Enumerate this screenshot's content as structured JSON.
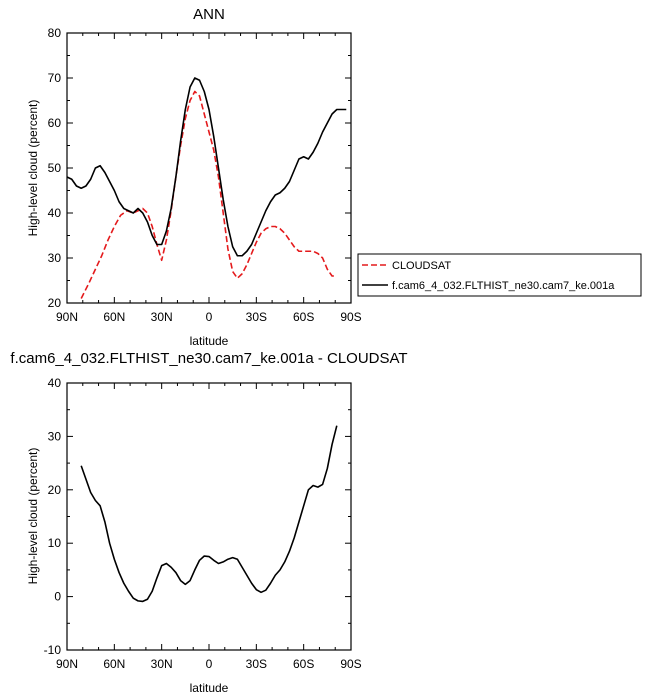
{
  "chart_data": [
    {
      "type": "line",
      "title": "ANN",
      "xlabel": "latitude",
      "ylabel": "High-level cloud (percent)",
      "x_ticks": [
        {
          "value": 90,
          "label": "90N"
        },
        {
          "value": 60,
          "label": "60N"
        },
        {
          "value": 30,
          "label": "30N"
        },
        {
          "value": 0,
          "label": "0"
        },
        {
          "value": -30,
          "label": "30S"
        },
        {
          "value": -60,
          "label": "60S"
        },
        {
          "value": -90,
          "label": "90S"
        }
      ],
      "xlim": [
        90,
        -90
      ],
      "ylim": [
        20,
        80
      ],
      "y_ticks": [
        20,
        30,
        40,
        50,
        60,
        70,
        80
      ],
      "legend": "outside-right",
      "series": [
        {
          "name": "CLOUDSAT",
          "color": "#e41a1c",
          "dash": "dashed",
          "x": [
            81,
            76,
            72,
            68,
            64,
            60,
            56,
            52,
            48,
            45,
            42,
            39,
            36,
            33,
            30,
            27,
            24,
            21,
            18,
            15,
            12,
            9,
            6,
            3,
            0,
            -3,
            -6,
            -9,
            -12,
            -15,
            -18,
            -21,
            -24,
            -27,
            -30,
            -33,
            -36,
            -39,
            -42,
            -45,
            -48,
            -51,
            -54,
            -57,
            -60,
            -63,
            -66,
            -69,
            -72,
            -75,
            -78,
            -81
          ],
          "y": [
            21,
            24.5,
            27.5,
            30.5,
            34,
            37,
            39.5,
            40.5,
            40,
            40.5,
            41,
            40,
            37,
            33,
            29.5,
            34,
            40.5,
            48,
            55,
            61,
            65,
            67,
            66,
            62,
            58,
            54,
            48,
            40,
            32,
            27,
            25.5,
            26.5,
            28.5,
            31,
            33.5,
            35.5,
            36.5,
            37,
            37,
            36.5,
            35.5,
            34,
            32.5,
            31.5,
            31.5,
            31.5,
            31.5,
            31,
            30,
            27.5,
            26,
            26
          ]
        },
        {
          "name": "f.cam6_4_032.FLTHIST_ne30.cam7_ke.001a",
          "color": "#000000",
          "dash": "solid",
          "x": [
            90,
            87,
            84,
            81,
            78,
            75,
            72,
            69,
            66,
            63,
            60,
            57,
            54,
            51,
            48,
            45,
            42,
            39,
            36,
            33,
            30,
            27,
            24,
            21,
            18,
            15,
            12,
            9,
            6,
            3,
            0,
            -3,
            -6,
            -9,
            -12,
            -15,
            -18,
            -21,
            -24,
            -27,
            -30,
            -33,
            -36,
            -39,
            -42,
            -45,
            -48,
            -51,
            -54,
            -57,
            -60,
            -63,
            -66,
            -69,
            -72,
            -75,
            -78,
            -81,
            -84,
            -87
          ],
          "y": [
            48,
            47.5,
            46,
            45.5,
            46,
            47.5,
            50,
            50.5,
            49,
            47,
            45,
            42.5,
            41,
            40.5,
            40,
            41,
            40,
            38,
            35,
            33,
            33,
            36,
            41,
            48,
            56,
            63,
            68,
            70,
            69.5,
            67,
            63,
            57,
            50,
            43,
            37,
            32.5,
            30.5,
            30.5,
            31.5,
            33,
            35.5,
            38,
            40.5,
            42.5,
            44,
            44.5,
            45.5,
            47,
            49.5,
            52,
            52.5,
            52,
            53.5,
            55.5,
            58,
            60,
            62,
            63,
            63,
            63
          ]
        }
      ]
    },
    {
      "type": "line",
      "title": "f.cam6_4_032.FLTHIST_ne30.cam7_ke.001a - CLOUDSAT",
      "xlabel": "latitude",
      "ylabel": "High-level cloud (percent)",
      "x_ticks": [
        {
          "value": 90,
          "label": "90N"
        },
        {
          "value": 60,
          "label": "60N"
        },
        {
          "value": 30,
          "label": "30N"
        },
        {
          "value": 0,
          "label": "0"
        },
        {
          "value": -30,
          "label": "30S"
        },
        {
          "value": -60,
          "label": "60S"
        },
        {
          "value": -90,
          "label": "90S"
        }
      ],
      "xlim": [
        90,
        -90
      ],
      "ylim": [
        -10,
        40
      ],
      "y_ticks": [
        -10,
        0,
        10,
        20,
        30,
        40
      ],
      "series": [
        {
          "name": "",
          "color": "#000000",
          "dash": "solid",
          "x": [
            81,
            78,
            75,
            72,
            69,
            66,
            63,
            60,
            57,
            54,
            51,
            48,
            45,
            42,
            39,
            36,
            33,
            30,
            27,
            24,
            21,
            18,
            15,
            12,
            9,
            6,
            3,
            0,
            -3,
            -6,
            -9,
            -12,
            -15,
            -18,
            -21,
            -24,
            -27,
            -30,
            -33,
            -36,
            -39,
            -42,
            -45,
            -48,
            -51,
            -54,
            -57,
            -60,
            -63,
            -66,
            -69,
            -72,
            -75,
            -78,
            -81
          ],
          "y": [
            24.5,
            22,
            19.5,
            18,
            17,
            14,
            10,
            7,
            4.5,
            2.5,
            1,
            -0.3,
            -0.8,
            -0.9,
            -0.5,
            1,
            3.5,
            5.8,
            6.2,
            5.5,
            4.5,
            3,
            2.3,
            3,
            5,
            6.8,
            7.6,
            7.5,
            6.8,
            6.2,
            6.5,
            7,
            7.3,
            7,
            5.5,
            4,
            2.5,
            1.3,
            0.8,
            1.2,
            2.5,
            4,
            5,
            6.5,
            8.5,
            11,
            14,
            17,
            20,
            20.8,
            20.5,
            21,
            24,
            28.5,
            32
          ]
        }
      ]
    }
  ]
}
